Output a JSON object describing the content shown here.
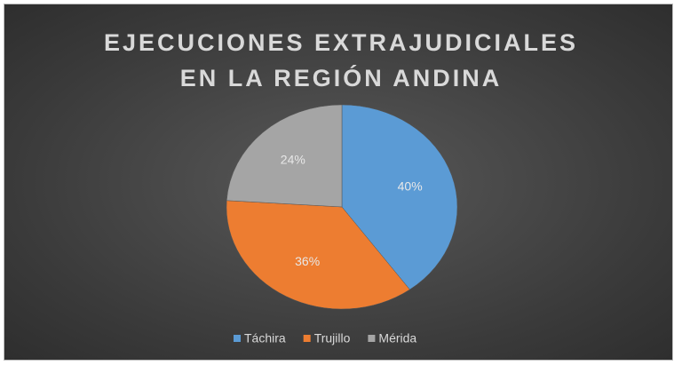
{
  "chart_data": {
    "type": "pie",
    "title": "EJECUCIONES EXTRAJUDICIALES EN LA REGIÓN ANDINA",
    "categories": [
      "Táchira",
      "Trujillo",
      "Mérida"
    ],
    "values": [
      40,
      36,
      24
    ],
    "value_labels": [
      "40%",
      "36%",
      "24%"
    ],
    "colors": [
      "#5b9bd5",
      "#ed7d31",
      "#a5a5a5"
    ],
    "legend": "bottom"
  }
}
